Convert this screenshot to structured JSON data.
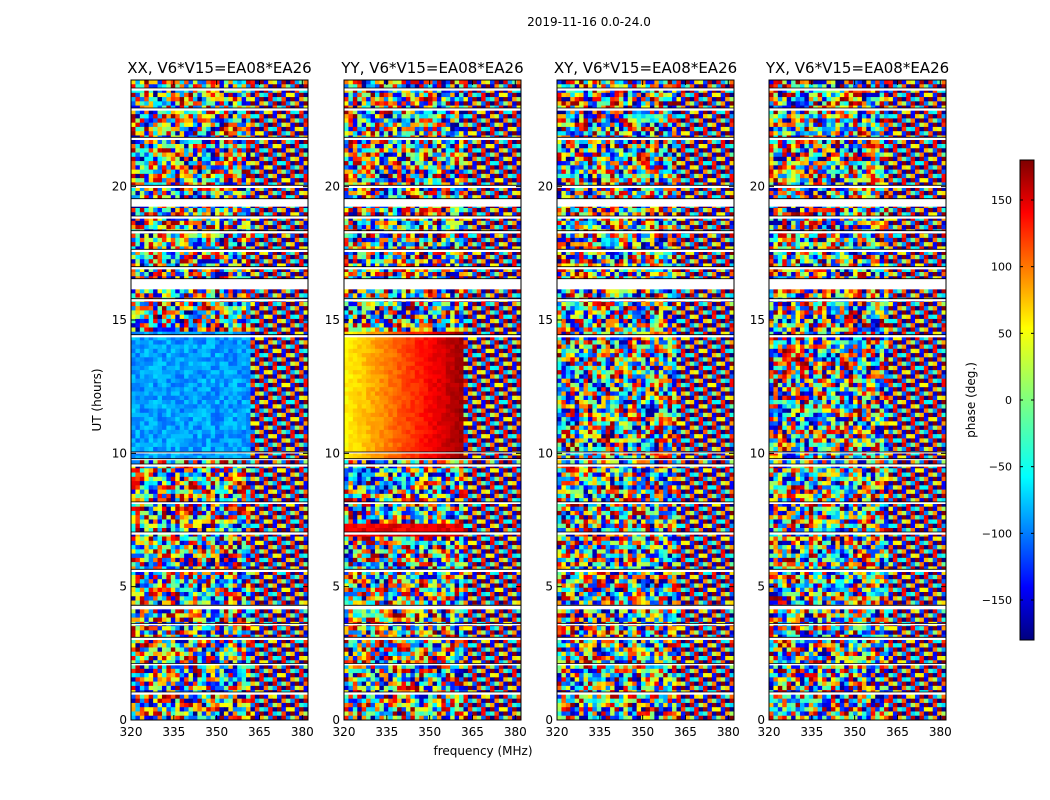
{
  "figure": {
    "suptitle": "2019-11-16 0.0-24.0"
  },
  "chart_data": {
    "type": "heatmap",
    "suptitle": "2019-11-16 0.0-24.0",
    "xlabel": "frequency (MHz)",
    "ylabel": "UT (hours)",
    "xlim": [
      320,
      382
    ],
    "ylim": [
      0,
      24
    ],
    "xticks": [
      320,
      335,
      350,
      365,
      380
    ],
    "yticks": [
      0,
      5,
      10,
      15,
      20
    ],
    "panels": [
      {
        "title": "XX, V6*V15=EA08*EA26",
        "polarization": "XX"
      },
      {
        "title": "YY, V6*V15=EA08*EA26",
        "polarization": "YY"
      },
      {
        "title": "XY, V6*V15=EA08*EA26",
        "polarization": "XY"
      },
      {
        "title": "YX, V6*V15=EA08*EA26",
        "polarization": "YX"
      }
    ],
    "colorbar": {
      "label": "phase (deg.)",
      "range": [
        -180,
        180
      ],
      "ticks": [
        -150,
        -100,
        -50,
        0,
        50,
        100,
        150
      ],
      "colormap": "jet"
    },
    "flagged_ut_bands": [
      [
        0.95,
        1.05
      ],
      [
        2.05,
        2.12
      ],
      [
        3.0,
        3.1
      ],
      [
        3.55,
        3.62
      ],
      [
        4.15,
        4.3
      ],
      [
        5.55,
        5.65
      ],
      [
        6.95,
        7.05
      ],
      [
        8.1,
        8.18
      ],
      [
        9.5,
        9.6
      ],
      [
        9.75,
        9.8
      ],
      [
        10.0,
        10.05
      ],
      [
        14.35,
        14.45
      ],
      [
        15.7,
        15.8
      ],
      [
        16.15,
        16.55
      ],
      [
        16.9,
        17.0
      ],
      [
        17.55,
        17.65
      ],
      [
        18.25,
        18.35
      ],
      [
        18.8,
        18.9
      ],
      [
        19.25,
        19.55
      ],
      [
        19.95,
        20.05
      ],
      [
        21.75,
        21.85
      ],
      [
        22.85,
        22.95
      ],
      [
        23.6,
        23.7
      ]
    ]
  }
}
